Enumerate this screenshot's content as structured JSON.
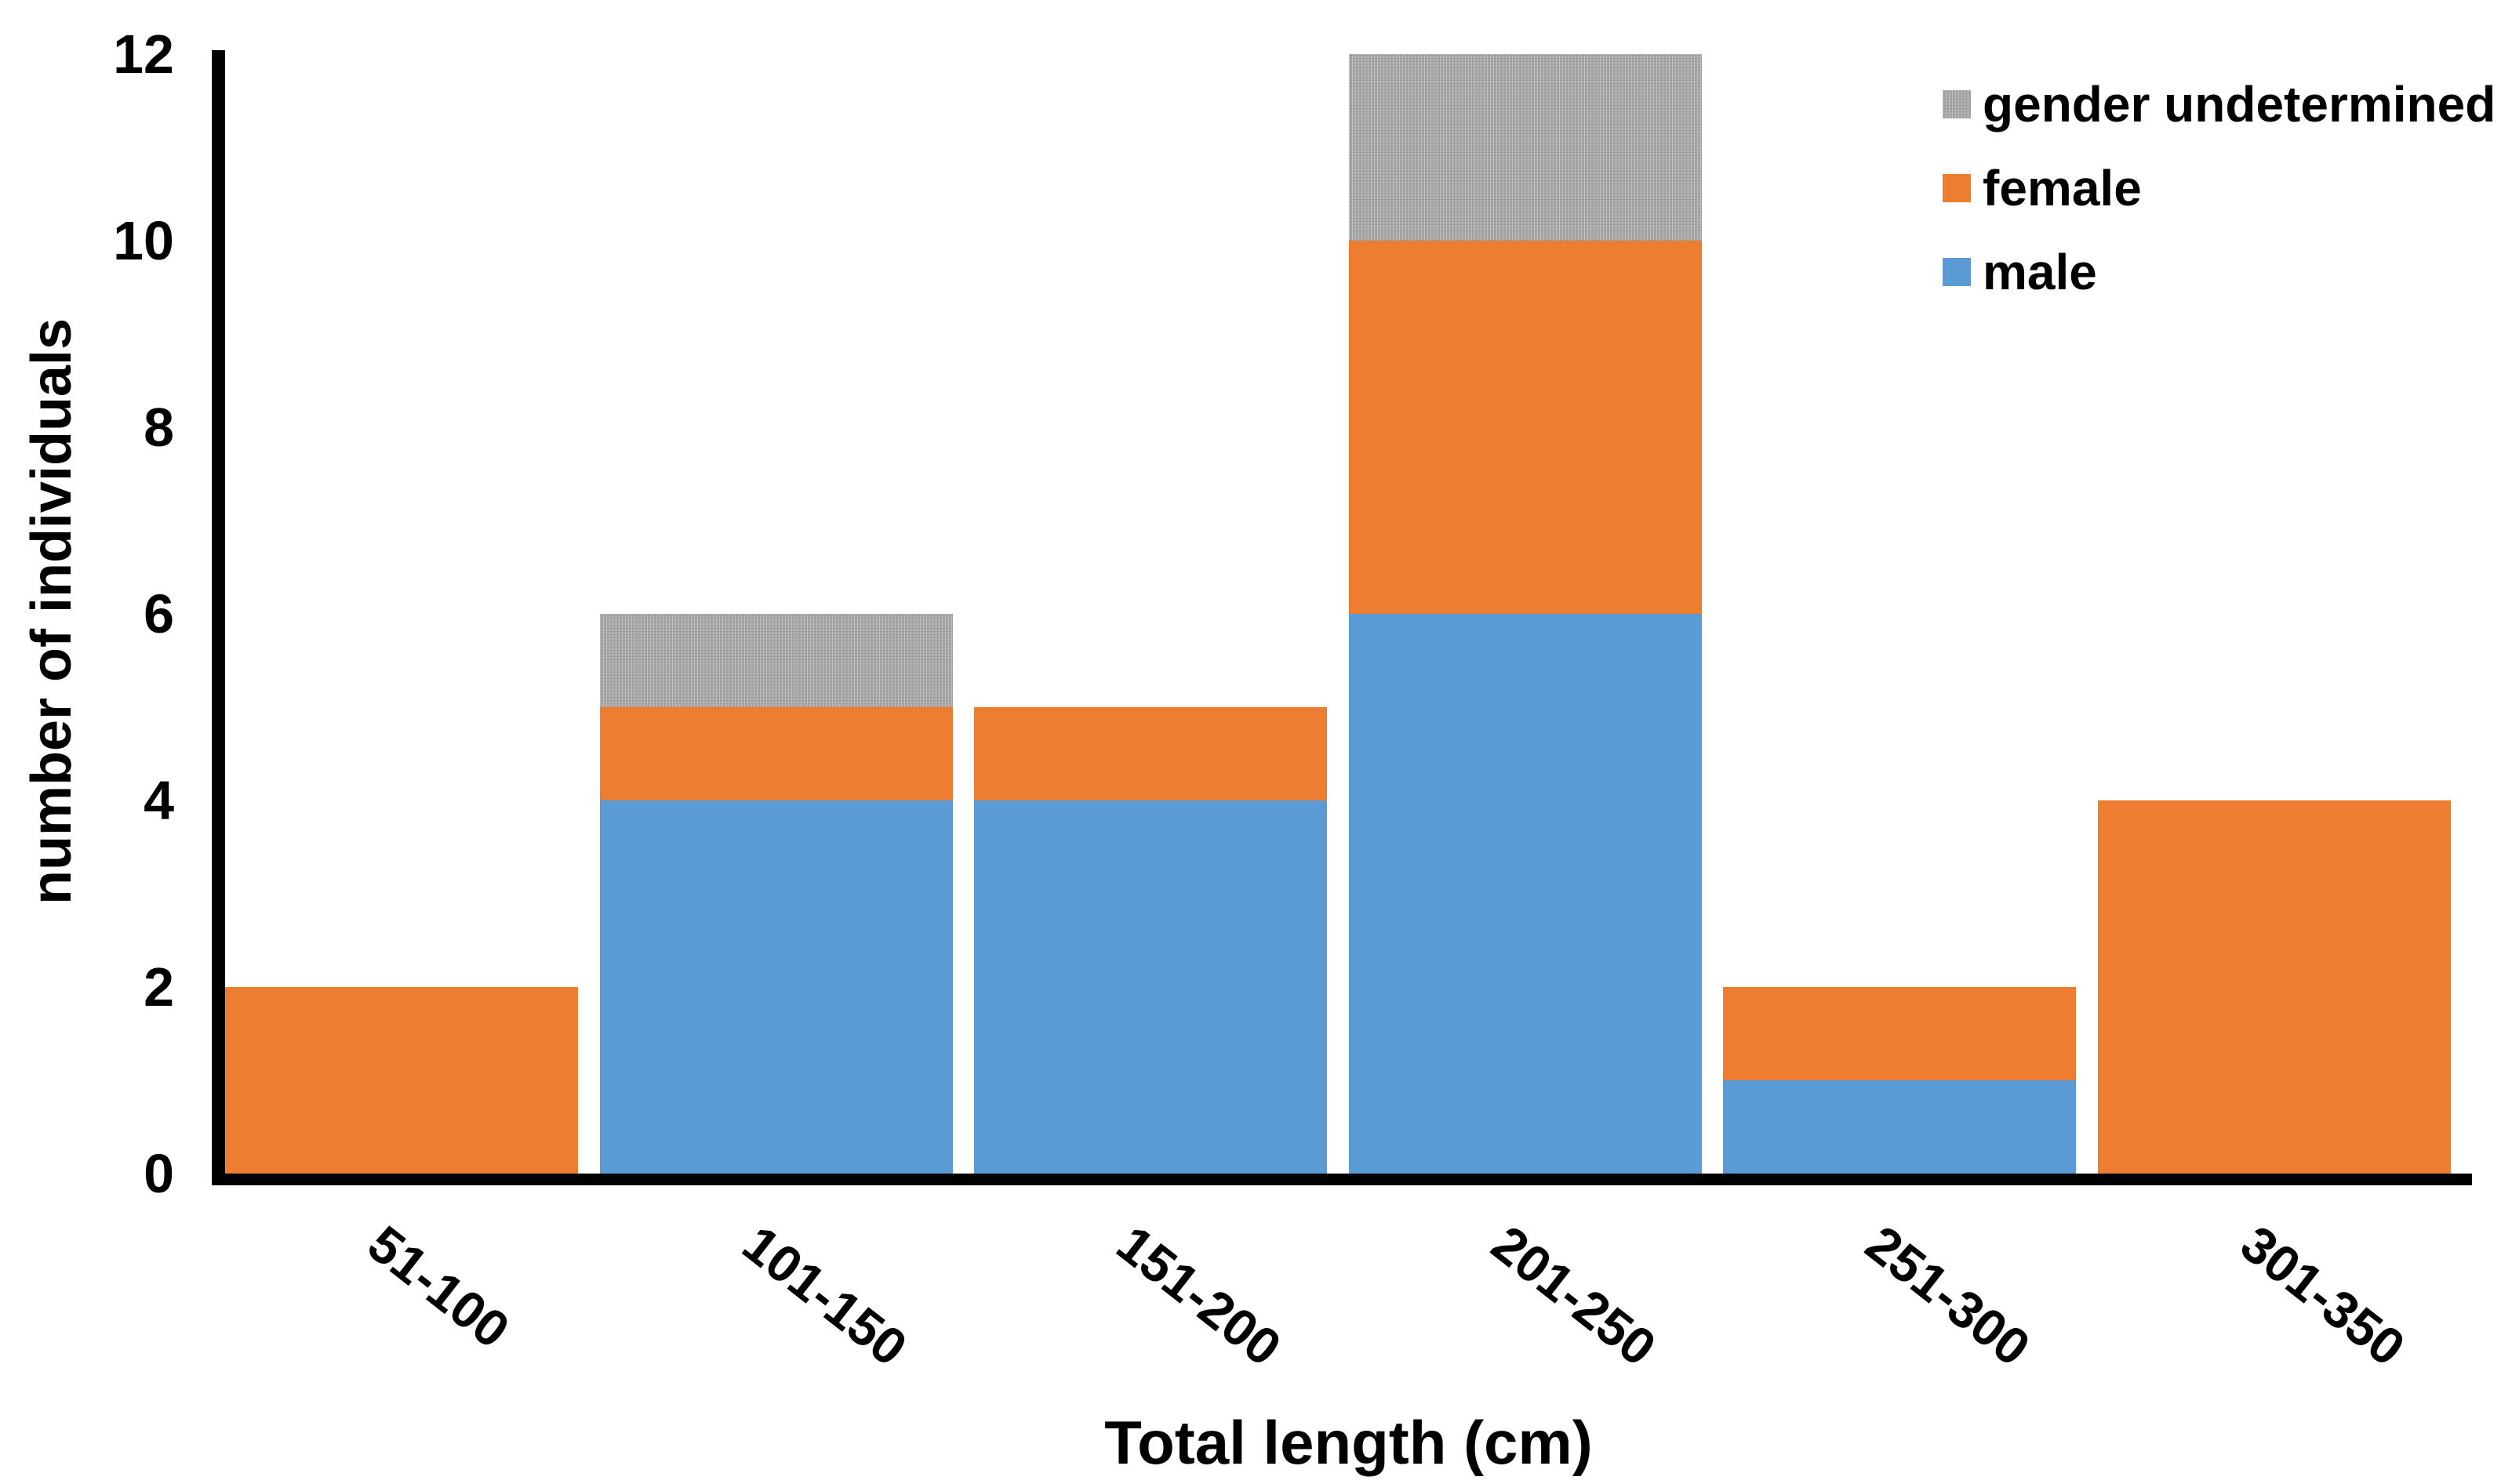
{
  "chart_data": {
    "type": "bar",
    "stacked": true,
    "title": "",
    "xlabel": "Total length (cm)",
    "ylabel": "number of individuals",
    "categories": [
      "51-100",
      "101-150",
      "151-200",
      "201-250",
      "251-300",
      "301-350"
    ],
    "series": [
      {
        "name": "male",
        "color": "#5B9BD5",
        "pattern": "solid",
        "values": [
          0,
          4,
          4,
          6,
          1,
          0
        ]
      },
      {
        "name": "female",
        "color": "#ED7D31",
        "pattern": "solid",
        "values": [
          2,
          1,
          1,
          4,
          1,
          4
        ]
      },
      {
        "name": "gender undetermined",
        "color": "#A6A6A6",
        "pattern": "dotted",
        "values": [
          0,
          1,
          0,
          2,
          0,
          0
        ]
      }
    ],
    "totals": [
      2,
      6,
      5,
      12,
      2,
      4
    ],
    "ylim": [
      0,
      12
    ],
    "y_ticks": [
      0,
      2,
      4,
      6,
      8,
      10,
      12
    ],
    "grid": false,
    "legend_position": "top-right",
    "legend_order": [
      "gender undetermined",
      "female",
      "male"
    ],
    "axis_color": "#000000",
    "text_color": "#000000",
    "background_color": "#FFFFFF"
  }
}
